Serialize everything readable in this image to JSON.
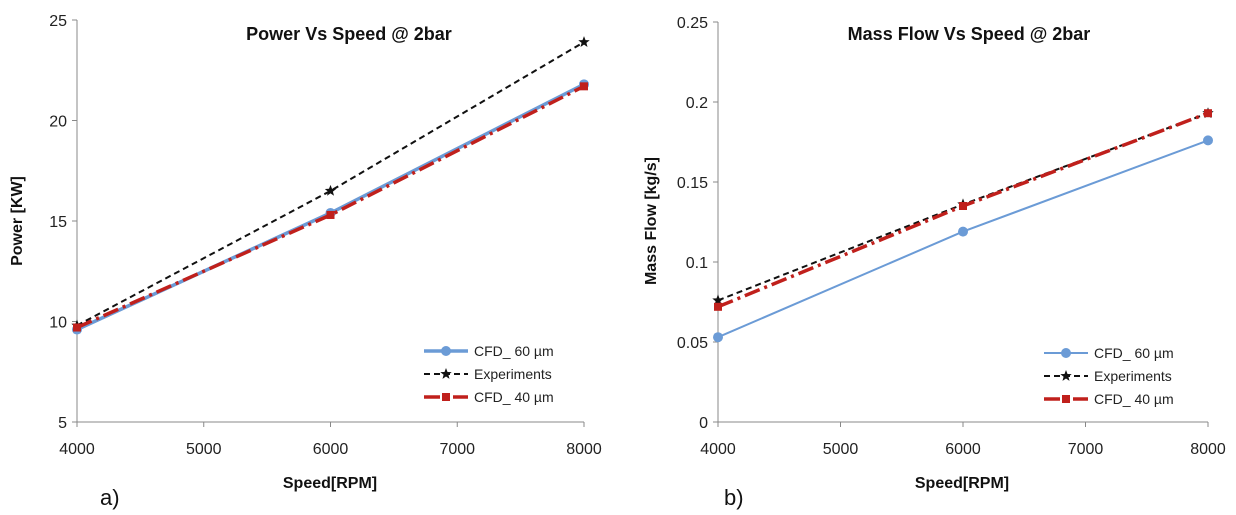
{
  "chart_data": [
    {
      "type": "line",
      "title": "Power Vs Speed @ 2bar",
      "xlabel": "Speed[RPM]",
      "ylabel": "Power [KW]",
      "panel_label": "a)",
      "xlim": [
        4000,
        8000
      ],
      "ylim": [
        5,
        25
      ],
      "xticks": [
        4000,
        5000,
        6000,
        7000,
        8000
      ],
      "yticks": [
        5,
        10,
        15,
        20,
        25
      ],
      "x": [
        4000,
        6000,
        8000
      ],
      "series": [
        {
          "name": "CFD_ 60 µm",
          "values": [
            9.6,
            15.4,
            21.8
          ],
          "color": "#6b9bd6",
          "dash": "",
          "marker": "circle",
          "width": 3.5
        },
        {
          "name": "Experiments",
          "values": [
            9.8,
            16.5,
            23.9
          ],
          "color": "#111111",
          "dash": "6,4",
          "marker": "star",
          "width": 2
        },
        {
          "name": "CFD_ 40 µm",
          "values": [
            9.7,
            15.3,
            21.7
          ],
          "color": "#c0201c",
          "dash": "16,5,3,5",
          "marker": "square",
          "width": 3.5
        }
      ]
    },
    {
      "type": "line",
      "title": "Mass Flow Vs Speed @ 2bar",
      "xlabel": "Speed[RPM]",
      "ylabel": "Mass Flow [kg/s]",
      "panel_label": "b)",
      "xlim": [
        4000,
        8000
      ],
      "ylim": [
        0,
        0.25
      ],
      "xticks": [
        4000,
        5000,
        6000,
        7000,
        8000
      ],
      "yticks": [
        "0",
        "0.05",
        "0.1",
        "0.15",
        "0.2",
        "0.25"
      ],
      "x": [
        4000,
        6000,
        8000
      ],
      "series": [
        {
          "name": "CFD_ 60 µm",
          "values": [
            0.053,
            0.119,
            0.176
          ],
          "color": "#6b9bd6",
          "dash": "",
          "marker": "circle",
          "width": 2
        },
        {
          "name": "Experiments",
          "values": [
            0.076,
            0.136,
            0.193
          ],
          "color": "#111111",
          "dash": "6,4",
          "marker": "star",
          "width": 2
        },
        {
          "name": "CFD_ 40 µm",
          "values": [
            0.072,
            0.135,
            0.193
          ],
          "color": "#c0201c",
          "dash": "16,5,3,5",
          "marker": "square",
          "width": 3.5
        }
      ]
    }
  ]
}
